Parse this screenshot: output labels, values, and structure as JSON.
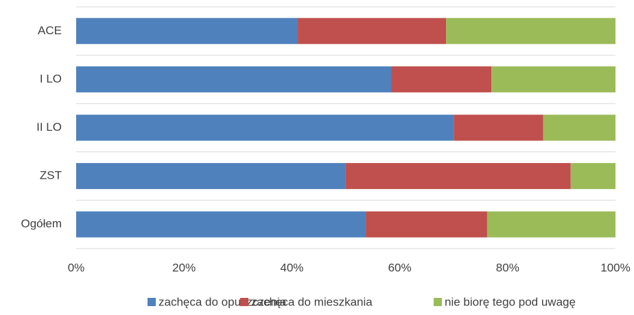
{
  "chart_data": {
    "type": "stacked_barh",
    "categories": [
      "ACE",
      "I LO",
      "II LO",
      "ZST",
      "Ogółem"
    ],
    "series": [
      {
        "name": "zachęca do opuszczenia",
        "color": "#4f81bd",
        "values": [
          41.1,
          58.4,
          70.0,
          49.9,
          53.7
        ]
      },
      {
        "name": "zachęca do mieszkania",
        "color": "#c0504d",
        "values": [
          27.5,
          18.6,
          16.6,
          41.8,
          22.5
        ]
      },
      {
        "name": "nie biorę tego pod uwagę",
        "color": "#9bbb59",
        "values": [
          31.4,
          23.0,
          13.4,
          8.3,
          23.8
        ]
      }
    ],
    "xlim": [
      0,
      100
    ],
    "xticks": [
      {
        "value": 0,
        "label": "0%"
      },
      {
        "value": 20,
        "label": "20%"
      },
      {
        "value": 40,
        "label": "40%"
      },
      {
        "value": 60,
        "label": "60%"
      },
      {
        "value": 80,
        "label": "80%"
      },
      {
        "value": 100,
        "label": "100%"
      }
    ],
    "legend": "bottom"
  }
}
